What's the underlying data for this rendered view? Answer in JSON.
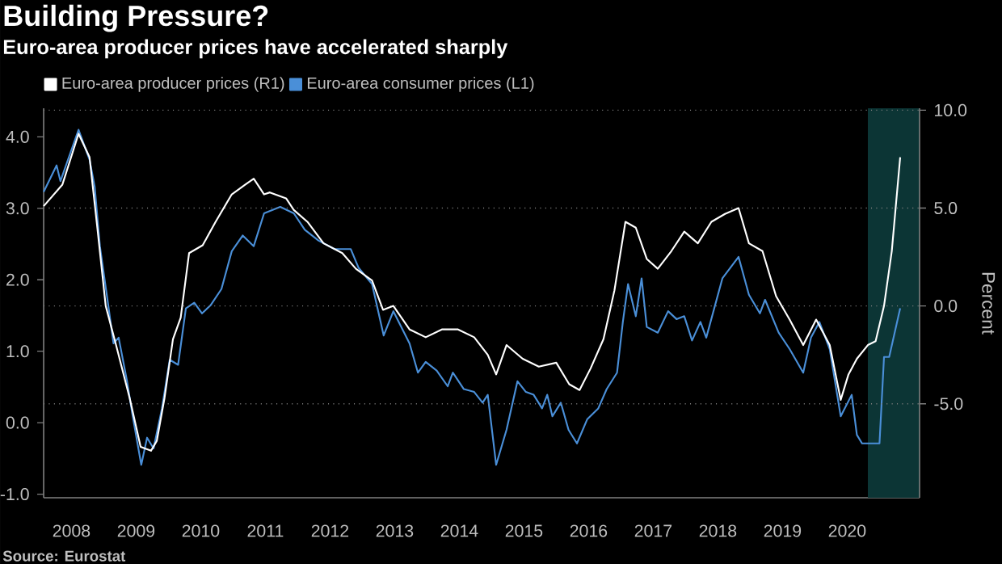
{
  "chart_data": {
    "type": "line",
    "title": "Building Pressure?",
    "subtitle": "Euro-area producer prices have accelerated sharply",
    "annotations": [
      "Source: Eurostat"
    ],
    "y2label": "Percent",
    "series": [
      {
        "name": "Euro-area producer prices (R1)",
        "color": "#ffffff",
        "axis": "y2",
        "x": [
          2008.07,
          2008.36,
          2008.61,
          2008.78,
          2008.9,
          2009.03,
          2009.19,
          2009.4,
          2009.57,
          2009.73,
          2009.82,
          2009.94,
          2010.07,
          2010.19,
          2010.32,
          2010.53,
          2010.73,
          2010.98,
          2011.19,
          2011.32,
          2011.48,
          2011.57,
          2011.82,
          2011.94,
          2012.15,
          2012.4,
          2012.69,
          2012.9,
          2013.15,
          2013.32,
          2013.48,
          2013.73,
          2013.98,
          2014.23,
          2014.48,
          2014.73,
          2014.94,
          2015.07,
          2015.23,
          2015.48,
          2015.73,
          2016.0,
          2016.2,
          2016.36,
          2016.53,
          2016.73,
          2016.9,
          2017.07,
          2017.23,
          2017.4,
          2017.57,
          2017.78,
          2017.98,
          2018.19,
          2018.4,
          2018.61,
          2018.82,
          2018.98,
          2019.19,
          2019.4,
          2019.61,
          2019.82,
          2020.02,
          2020.23,
          2020.4,
          2020.52,
          2020.65,
          2020.82,
          2020.94,
          2021.07,
          2021.19,
          2021.32
        ],
        "values": [
          5.1,
          6.2,
          8.8,
          7.6,
          4.0,
          0.0,
          -2.0,
          -4.7,
          -7.2,
          -7.4,
          -6.9,
          -4.7,
          -1.7,
          -0.6,
          2.7,
          3.1,
          4.3,
          5.7,
          6.2,
          6.5,
          5.7,
          5.8,
          5.5,
          4.9,
          4.3,
          3.2,
          2.7,
          1.9,
          1.3,
          -0.2,
          0.0,
          -1.2,
          -1.6,
          -1.2,
          -1.2,
          -1.6,
          -2.5,
          -3.5,
          -2.0,
          -2.7,
          -3.1,
          -2.9,
          -4.0,
          -4.3,
          -3.2,
          -1.7,
          0.8,
          4.3,
          4.0,
          2.4,
          1.9,
          2.8,
          3.8,
          3.2,
          4.3,
          4.7,
          5.0,
          3.2,
          2.8,
          0.5,
          -0.7,
          -2.0,
          -0.7,
          -2.0,
          -4.8,
          -3.5,
          -2.7,
          -2.0,
          -1.8,
          0.0,
          2.8,
          7.6
        ]
      },
      {
        "name": "Euro-area consumer prices (L1)",
        "color": "#4a8fd8",
        "axis": "y",
        "x": [
          2008.07,
          2008.27,
          2008.33,
          2008.61,
          2008.78,
          2008.86,
          2008.94,
          2009.07,
          2009.15,
          2009.23,
          2009.36,
          2009.44,
          2009.58,
          2009.67,
          2009.77,
          2009.9,
          2010.02,
          2010.15,
          2010.27,
          2010.4,
          2010.52,
          2010.65,
          2010.82,
          2010.98,
          2011.15,
          2011.32,
          2011.48,
          2011.73,
          2011.94,
          2012.11,
          2012.32,
          2012.57,
          2012.82,
          2012.94,
          2013.15,
          2013.33,
          2013.48,
          2013.73,
          2013.86,
          2013.98,
          2014.15,
          2014.32,
          2014.4,
          2014.57,
          2014.73,
          2014.86,
          2014.94,
          2015.07,
          2015.23,
          2015.4,
          2015.53,
          2015.65,
          2015.78,
          2015.86,
          2015.94,
          2016.07,
          2016.19,
          2016.32,
          2016.48,
          2016.65,
          2016.78,
          2016.94,
          2017.03,
          2017.11,
          2017.23,
          2017.32,
          2017.4,
          2017.57,
          2017.73,
          2017.86,
          2017.98,
          2018.1,
          2018.23,
          2018.32,
          2018.57,
          2018.82,
          2018.98,
          2019.15,
          2019.23,
          2019.44,
          2019.61,
          2019.82,
          2019.94,
          2020.07,
          2020.23,
          2020.4,
          2020.57,
          2020.65,
          2020.73,
          2021.0,
          2021.07,
          2021.15,
          2021.32
        ],
        "values": [
          3.23,
          3.6,
          3.38,
          4.1,
          3.68,
          3.3,
          2.47,
          1.64,
          1.11,
          1.19,
          0.58,
          0.13,
          -0.59,
          -0.21,
          -0.36,
          0.2,
          0.88,
          0.81,
          1.6,
          1.68,
          1.53,
          1.64,
          1.87,
          2.4,
          2.62,
          2.47,
          2.93,
          3.02,
          2.93,
          2.7,
          2.55,
          2.43,
          2.43,
          2.17,
          1.94,
          1.22,
          1.56,
          1.11,
          0.7,
          0.85,
          0.73,
          0.51,
          0.7,
          0.47,
          0.43,
          0.28,
          0.39,
          -0.59,
          -0.1,
          0.58,
          0.43,
          0.39,
          0.2,
          0.39,
          0.09,
          0.28,
          -0.1,
          -0.29,
          0.05,
          0.2,
          0.47,
          0.7,
          1.41,
          1.94,
          1.49,
          2.02,
          1.34,
          1.26,
          1.56,
          1.45,
          1.49,
          1.15,
          1.41,
          1.19,
          2.02,
          2.32,
          1.79,
          1.53,
          1.72,
          1.26,
          1.03,
          0.7,
          1.19,
          1.41,
          1.03,
          0.09,
          0.39,
          -0.17,
          -0.29,
          -0.29,
          0.92,
          0.92,
          1.6
        ]
      }
    ],
    "xlim": [
      2008.07,
      2021.62
    ],
    "xticks": [
      {
        "value": 2008.5,
        "label": "2008"
      },
      {
        "value": 2009.5,
        "label": "2009"
      },
      {
        "value": 2010.5,
        "label": "2010"
      },
      {
        "value": 2011.5,
        "label": "2011"
      },
      {
        "value": 2012.5,
        "label": "2012"
      },
      {
        "value": 2013.5,
        "label": "2013"
      },
      {
        "value": 2014.5,
        "label": "2014"
      },
      {
        "value": 2015.5,
        "label": "2015"
      },
      {
        "value": 2016.5,
        "label": "2016"
      },
      {
        "value": 2017.5,
        "label": "2017"
      },
      {
        "value": 2018.5,
        "label": "2018"
      },
      {
        "value": 2019.5,
        "label": "2019"
      },
      {
        "value": 2020.5,
        "label": "2020"
      }
    ],
    "ylim": [
      -1.05,
      4.4
    ],
    "yticks": [
      {
        "value": -1,
        "label": "-1.0"
      },
      {
        "value": 0,
        "label": "0.0"
      },
      {
        "value": 1,
        "label": "1.0"
      },
      {
        "value": 2,
        "label": "2.0"
      },
      {
        "value": 3,
        "label": "3.0"
      },
      {
        "value": 4,
        "label": "4.0"
      }
    ],
    "y2lim": [
      -9.8,
      10.1
    ],
    "y2ticks": [
      {
        "value": -5,
        "label": "-5.0"
      },
      {
        "value": 0,
        "label": "0.0"
      },
      {
        "value": 5,
        "label": "5.0"
      },
      {
        "value": 10,
        "label": "10.0"
      }
    ],
    "bands": [
      {
        "axis": "x",
        "from": 2020.82,
        "to": 2021.62,
        "color": "#0c3535"
      }
    ],
    "grid": "y",
    "legend": "top left",
    "marker": "none",
    "line_style": "solid"
  }
}
